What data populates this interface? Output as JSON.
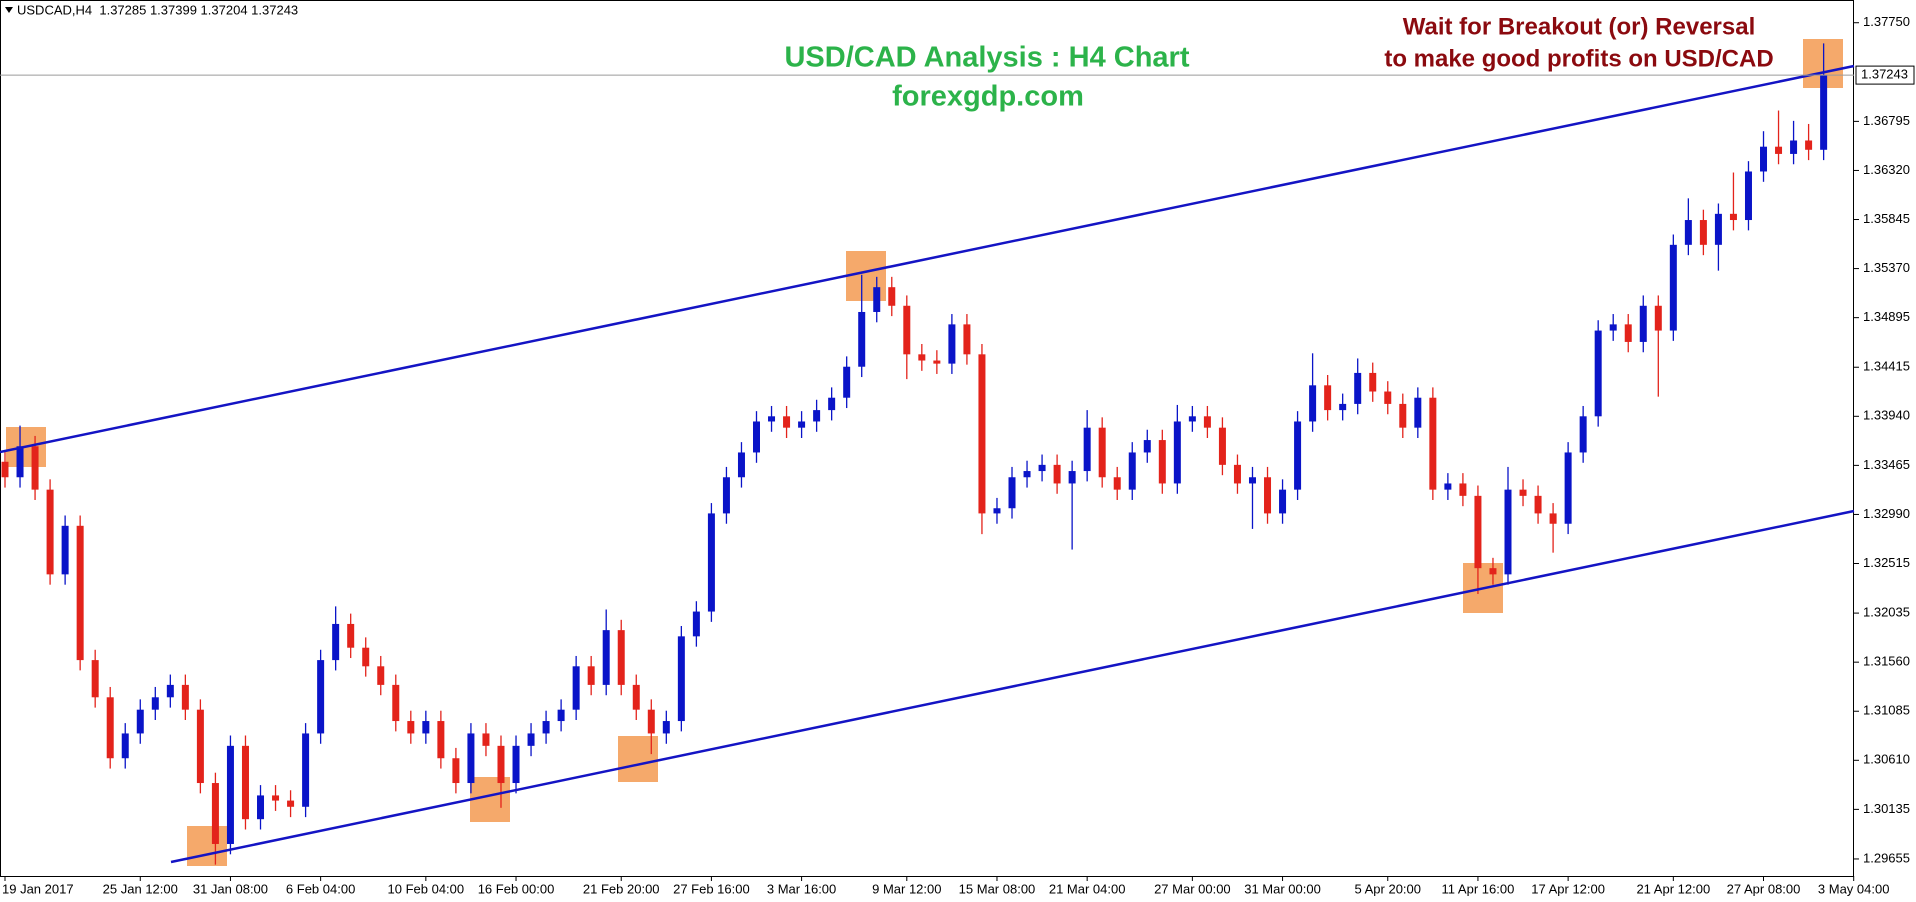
{
  "chart_data": {
    "type": "candlestick",
    "header": "USDCAD,H4  1.37285 1.37399 1.37204 1.37243",
    "title": "USD/CAD Analysis : H4 Chart",
    "subtitle": "forexgdp.com",
    "annotations": [
      "Wait for Breakout (or) Reversal",
      "to make good profits on USD/CAD"
    ],
    "up_color": "#0a14c8",
    "down_color": "#e3231b",
    "current_price": 1.37243,
    "ylim": [
      1.2949,
      1.3797
    ],
    "yticks": [
      {
        "value": 1.3775,
        "label": "1.37750"
      },
      1.36795,
      {
        "value": 1.3632,
        "label": "1.36320"
      },
      1.35845,
      {
        "value": 1.3537,
        "label": "1.35370"
      },
      1.34895,
      1.34415,
      {
        "value": 1.3394,
        "label": "1.33940"
      },
      1.33465,
      {
        "value": 1.3299,
        "label": "1.32990"
      },
      1.32515,
      1.32035,
      {
        "value": 1.3156,
        "label": "1.31560"
      },
      1.31085,
      {
        "value": 1.3061,
        "label": "1.30610"
      },
      1.30135,
      1.29655
    ],
    "xticks": [
      {
        "value": 0,
        "label": "19 Jan 2017"
      },
      {
        "value": 9,
        "label": "25 Jan 12:00"
      },
      {
        "value": 15,
        "label": "31 Jan 08:00"
      },
      {
        "value": 21,
        "label": "6 Feb 04:00"
      },
      {
        "value": 28,
        "label": "10 Feb 04:00"
      },
      {
        "value": 34,
        "label": "16 Feb 00:00"
      },
      {
        "value": 41,
        "label": "21 Feb 20:00"
      },
      {
        "value": 47,
        "label": "27 Feb 16:00"
      },
      {
        "value": 53,
        "label": "3 Mar 16:00"
      },
      {
        "value": 60,
        "label": "9 Mar 12:00"
      },
      {
        "value": 66,
        "label": "15 Mar 08:00"
      },
      {
        "value": 72,
        "label": "21 Mar 04:00"
      },
      {
        "value": 79,
        "label": "27 Mar 00:00"
      },
      {
        "value": 85,
        "label": "31 Mar 00:00"
      },
      {
        "value": 92,
        "label": "5 Apr 20:00"
      },
      {
        "value": 98,
        "label": "11 Apr 16:00"
      },
      {
        "value": 104,
        "label": "17 Apr 12:00"
      },
      {
        "value": 111,
        "label": "21 Apr 12:00"
      },
      {
        "value": 117,
        "label": "27 Apr 08:00"
      },
      {
        "value": 123,
        "label": "3 May 04:00"
      }
    ],
    "open": [
      1.335,
      1.3335,
      1.3365,
      1.3323,
      1.3241,
      1.3288,
      1.3158,
      1.3122,
      1.3063,
      1.3087,
      1.311,
      1.3122,
      1.3134,
      1.311,
      1.3039,
      1.298,
      1.3075,
      1.3004,
      1.3027,
      1.3022,
      1.3016,
      1.3087,
      1.3158,
      1.3193,
      1.317,
      1.3152,
      1.3134,
      1.3099,
      1.3087,
      1.3099,
      1.3063,
      1.3039,
      1.3087,
      1.3075,
      1.3039,
      1.3075,
      1.3087,
      1.3099,
      1.311,
      1.3152,
      1.3134,
      1.3187,
      1.3134,
      1.311,
      1.3087,
      1.3099,
      1.3181,
      1.3205,
      1.33,
      1.3335,
      1.3359,
      1.3389,
      1.3394,
      1.3383,
      1.3389,
      1.34,
      1.3412,
      1.3442,
      1.3495,
      1.3519,
      1.3501,
      1.3454,
      1.3448,
      1.3445,
      1.3483,
      1.3454,
      1.33,
      1.3305,
      1.3335,
      1.3341,
      1.3347,
      1.3329,
      1.3341,
      1.3383,
      1.3335,
      1.3323,
      1.3359,
      1.3371,
      1.3329,
      1.3389,
      1.3394,
      1.3383,
      1.3347,
      1.3329,
      1.3335,
      1.33,
      1.3323,
      1.3389,
      1.3424,
      1.34,
      1.3406,
      1.3436,
      1.3418,
      1.3406,
      1.3383,
      1.3412,
      1.3323,
      1.3329,
      1.3317,
      1.3247,
      1.3241,
      1.3323,
      1.3317,
      1.33,
      1.329,
      1.3359,
      1.3394,
      1.3477,
      1.3483,
      1.3466,
      1.3501,
      1.3477,
      1.356,
      1.3584,
      1.356,
      1.359,
      1.3584,
      1.3631,
      1.3655,
      1.3648,
      1.3661,
      1.3652
    ],
    "high": [
      1.336,
      1.3385,
      1.3375,
      1.3333,
      1.3298,
      1.3298,
      1.3168,
      1.3132,
      1.3097,
      1.312,
      1.3132,
      1.3144,
      1.3144,
      1.312,
      1.3049,
      1.3085,
      1.3085,
      1.3037,
      1.3037,
      1.3032,
      1.3097,
      1.3168,
      1.321,
      1.3203,
      1.318,
      1.3162,
      1.3144,
      1.3109,
      1.3109,
      1.3109,
      1.3073,
      1.3097,
      1.3097,
      1.3085,
      1.3085,
      1.3097,
      1.3109,
      1.312,
      1.3162,
      1.3162,
      1.3207,
      1.3197,
      1.3144,
      1.312,
      1.3109,
      1.3191,
      1.3215,
      1.331,
      1.3345,
      1.3369,
      1.3399,
      1.3404,
      1.3404,
      1.3399,
      1.341,
      1.3422,
      1.3452,
      1.3531,
      1.3529,
      1.3529,
      1.3511,
      1.3464,
      1.3458,
      1.3493,
      1.3493,
      1.3464,
      1.3315,
      1.3345,
      1.3351,
      1.3357,
      1.3357,
      1.3351,
      1.34,
      1.3393,
      1.3345,
      1.3369,
      1.3381,
      1.3381,
      1.3405,
      1.3404,
      1.3404,
      1.3393,
      1.3357,
      1.3345,
      1.3345,
      1.3333,
      1.3399,
      1.3455,
      1.3434,
      1.3416,
      1.345,
      1.3446,
      1.3428,
      1.3416,
      1.3422,
      1.3422,
      1.3339,
      1.3339,
      1.3327,
      1.3257,
      1.3345,
      1.3333,
      1.3327,
      1.331,
      1.3369,
      1.3404,
      1.3487,
      1.3493,
      1.3493,
      1.3511,
      1.3511,
      1.357,
      1.3605,
      1.3594,
      1.36,
      1.363,
      1.3641,
      1.367,
      1.369,
      1.368,
      1.3677,
      1.3755
    ],
    "low": [
      1.3325,
      1.3325,
      1.3313,
      1.3231,
      1.3231,
      1.3148,
      1.3112,
      1.3053,
      1.3053,
      1.3077,
      1.31,
      1.3112,
      1.31,
      1.3029,
      1.296,
      1.297,
      1.2994,
      1.2994,
      1.3012,
      1.3006,
      1.3006,
      1.3077,
      1.3148,
      1.316,
      1.3142,
      1.3124,
      1.3089,
      1.3077,
      1.3077,
      1.3053,
      1.3029,
      1.3029,
      1.3065,
      1.3015,
      1.3029,
      1.3065,
      1.3077,
      1.3089,
      1.31,
      1.3124,
      1.3124,
      1.3124,
      1.31,
      1.3067,
      1.3077,
      1.3089,
      1.3171,
      1.3195,
      1.329,
      1.3325,
      1.3349,
      1.3379,
      1.3373,
      1.3373,
      1.3379,
      1.339,
      1.3402,
      1.3432,
      1.3485,
      1.3491,
      1.343,
      1.3438,
      1.3435,
      1.3435,
      1.3444,
      1.328,
      1.329,
      1.3295,
      1.3325,
      1.3331,
      1.3319,
      1.3265,
      1.3331,
      1.3325,
      1.3313,
      1.3313,
      1.3349,
      1.3319,
      1.3319,
      1.3379,
      1.3373,
      1.3337,
      1.3319,
      1.3285,
      1.329,
      1.329,
      1.3313,
      1.3379,
      1.339,
      1.339,
      1.3396,
      1.3408,
      1.3396,
      1.3373,
      1.3373,
      1.3313,
      1.3313,
      1.3307,
      1.3222,
      1.3231,
      1.3231,
      1.3307,
      1.329,
      1.3262,
      1.328,
      1.3349,
      1.3384,
      1.3467,
      1.3456,
      1.3456,
      1.3413,
      1.3467,
      1.355,
      1.355,
      1.3535,
      1.3574,
      1.3574,
      1.3621,
      1.3638,
      1.3638,
      1.3642,
      1.3642
    ],
    "close": [
      1.3335,
      1.3365,
      1.3323,
      1.3241,
      1.3288,
      1.3158,
      1.3122,
      1.3063,
      1.3087,
      1.311,
      1.3122,
      1.3134,
      1.311,
      1.3039,
      1.298,
      1.3075,
      1.3004,
      1.3027,
      1.3022,
      1.3016,
      1.3087,
      1.3158,
      1.3193,
      1.317,
      1.3152,
      1.3134,
      1.3099,
      1.3087,
      1.3099,
      1.3063,
      1.3039,
      1.3087,
      1.3075,
      1.3039,
      1.3075,
      1.3087,
      1.3099,
      1.311,
      1.3152,
      1.3134,
      1.3187,
      1.3134,
      1.311,
      1.3087,
      1.3099,
      1.3181,
      1.3205,
      1.33,
      1.3335,
      1.3359,
      1.3389,
      1.3394,
      1.3383,
      1.3389,
      1.34,
      1.3412,
      1.3442,
      1.3495,
      1.3519,
      1.3501,
      1.3454,
      1.3448,
      1.3445,
      1.3483,
      1.3454,
      1.33,
      1.3305,
      1.3335,
      1.3341,
      1.3347,
      1.3329,
      1.3341,
      1.3383,
      1.3335,
      1.3323,
      1.3359,
      1.3371,
      1.3329,
      1.3389,
      1.3394,
      1.3383,
      1.3347,
      1.3329,
      1.3335,
      1.33,
      1.3323,
      1.3389,
      1.3424,
      1.34,
      1.3406,
      1.3436,
      1.3418,
      1.3406,
      1.3383,
      1.3412,
      1.3323,
      1.3329,
      1.3317,
      1.3247,
      1.3241,
      1.3323,
      1.3317,
      1.33,
      1.329,
      1.3359,
      1.3394,
      1.3477,
      1.3483,
      1.3466,
      1.3501,
      1.3477,
      1.356,
      1.3584,
      1.356,
      1.359,
      1.3584,
      1.3631,
      1.3655,
      1.3648,
      1.3661,
      1.3652,
      1.3724
    ]
  }
}
